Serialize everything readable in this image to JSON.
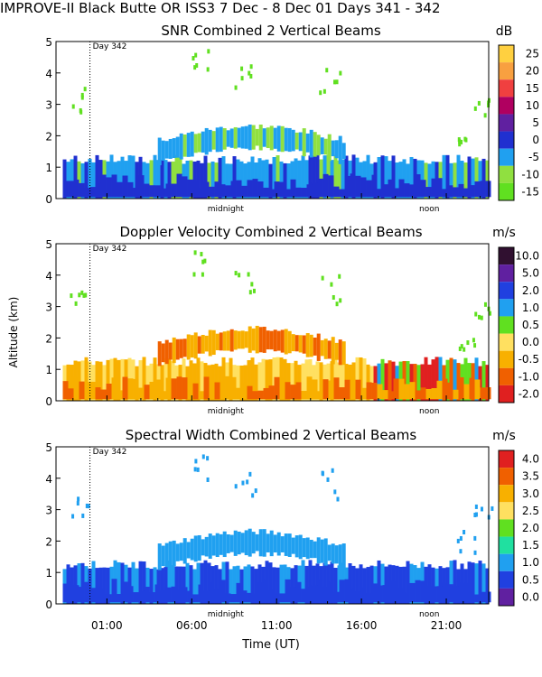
{
  "header": {
    "title": "IMPROVE-II  Black Butte OR  ISS3   7 Dec -  8 Dec 01 Days 341 - 342"
  },
  "day_marker": "Day 342",
  "midnight_label": "midnight",
  "noon_label": "noon",
  "y_axis_label": "Altitude (km)",
  "x_axis_label": "Time (UT)",
  "colors": {
    "background": "#ffffff",
    "frame": "#000000"
  },
  "chart_data": [
    {
      "type": "heatmap",
      "title": "SNR Combined 2 Vertical Beams",
      "unit": "dB",
      "ylabel": "",
      "ylim": [
        0,
        5
      ],
      "y_ticks": [
        "0",
        "1",
        "2",
        "3",
        "4",
        "5"
      ],
      "colorbar_labels": [
        "25",
        "20",
        "15",
        "10",
        "5",
        "0",
        "-5",
        "-10",
        "-15"
      ],
      "colorbar_colors": [
        "#ffd040",
        "#f8a040",
        "#f04040",
        "#b00060",
        "#6020a0",
        "#2030d0",
        "#20a0f0",
        "#90e040",
        "#60e020"
      ],
      "xlim": [
        -2,
        23.5
      ],
      "x_ticks": [
        1,
        6,
        11,
        16,
        21
      ],
      "x_tick_labels": [
        "01:00",
        "06:00",
        "11:00",
        "16:00",
        "21:00"
      ],
      "midnight_x": 8.0,
      "noon_x": 20.0,
      "day_boundary_x": 0.0
    },
    {
      "type": "heatmap",
      "title": "Doppler Velocity Combined 2 Vertical Beams",
      "unit": "m/s",
      "ylabel": "Altitude (km)",
      "ylim": [
        0,
        5
      ],
      "y_ticks": [
        "0",
        "1",
        "2",
        "3",
        "4",
        "5"
      ],
      "colorbar_labels": [
        "10.0",
        "5.0",
        "2.0",
        "1.0",
        "0.5",
        "0.0",
        "-0.5",
        "-1.0",
        "-2.0"
      ],
      "colorbar_colors": [
        "#301030",
        "#6020a0",
        "#2040e0",
        "#20a0f0",
        "#60e020",
        "#ffe060",
        "#f8b000",
        "#f06000",
        "#e02020"
      ],
      "xlim": [
        -2,
        23.5
      ],
      "x_ticks": [
        1,
        6,
        11,
        16,
        21
      ],
      "x_tick_labels": [
        "01:00",
        "06:00",
        "11:00",
        "16:00",
        "21:00"
      ],
      "midnight_x": 8.0,
      "noon_x": 20.0,
      "day_boundary_x": 0.0
    },
    {
      "type": "heatmap",
      "title": "Spectral Width Combined 2 Vertical Beams",
      "unit": "m/s",
      "ylabel": "",
      "ylim": [
        0,
        5
      ],
      "y_ticks": [
        "0",
        "1",
        "2",
        "3",
        "4",
        "5"
      ],
      "colorbar_labels": [
        "4.0",
        "3.5",
        "3.0",
        "2.5",
        "2.0",
        "1.5",
        "1.0",
        "0.5",
        "0.0"
      ],
      "colorbar_colors": [
        "#e02020",
        "#f06000",
        "#f8b000",
        "#ffe060",
        "#60e020",
        "#20e0a0",
        "#20a0f0",
        "#2040e0",
        "#6020a0"
      ],
      "xlim": [
        -2,
        23.5
      ],
      "x_ticks": [
        1,
        6,
        11,
        16,
        21
      ],
      "x_tick_labels": [
        "01:00",
        "06:00",
        "11:00",
        "16:00",
        "21:00"
      ],
      "midnight_x": 8.0,
      "noon_x": 20.0,
      "day_boundary_x": 0.0
    }
  ]
}
